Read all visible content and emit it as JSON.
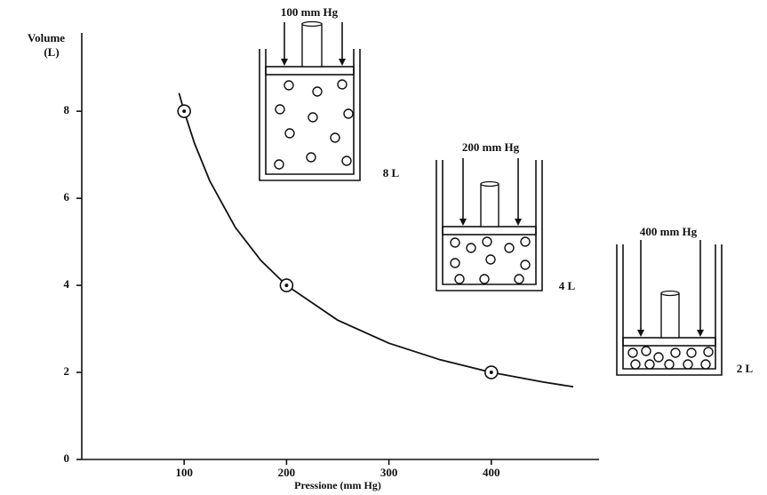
{
  "chart_data": {
    "type": "scatter",
    "ylabel": "Volume",
    "ylabel_unit": "(L)",
    "xlabel": "Pressione (mm Hg)",
    "xlim": [
      0,
      500
    ],
    "ylim": [
      0,
      9.8
    ],
    "xticks": [
      100,
      200,
      300,
      400
    ],
    "yticks": [
      0,
      2,
      4,
      6,
      8
    ],
    "points": {
      "x": [
        100,
        200,
        400
      ],
      "y": [
        8,
        4,
        2
      ]
    },
    "curve": {
      "x": [
        95,
        100,
        110,
        125,
        150,
        175,
        200,
        250,
        300,
        350,
        400,
        450,
        480
      ],
      "y": [
        8.42,
        8,
        7.27,
        6.4,
        5.33,
        4.57,
        4,
        3.2,
        2.67,
        2.29,
        2,
        1.78,
        1.67
      ]
    },
    "annotations": [
      {
        "pressure": "100 mm Hg",
        "volume": "8 L"
      },
      {
        "pressure": "200 mm Hg",
        "volume": "4 L"
      },
      {
        "pressure": "400 mm Hg",
        "volume": "2 L"
      }
    ]
  }
}
